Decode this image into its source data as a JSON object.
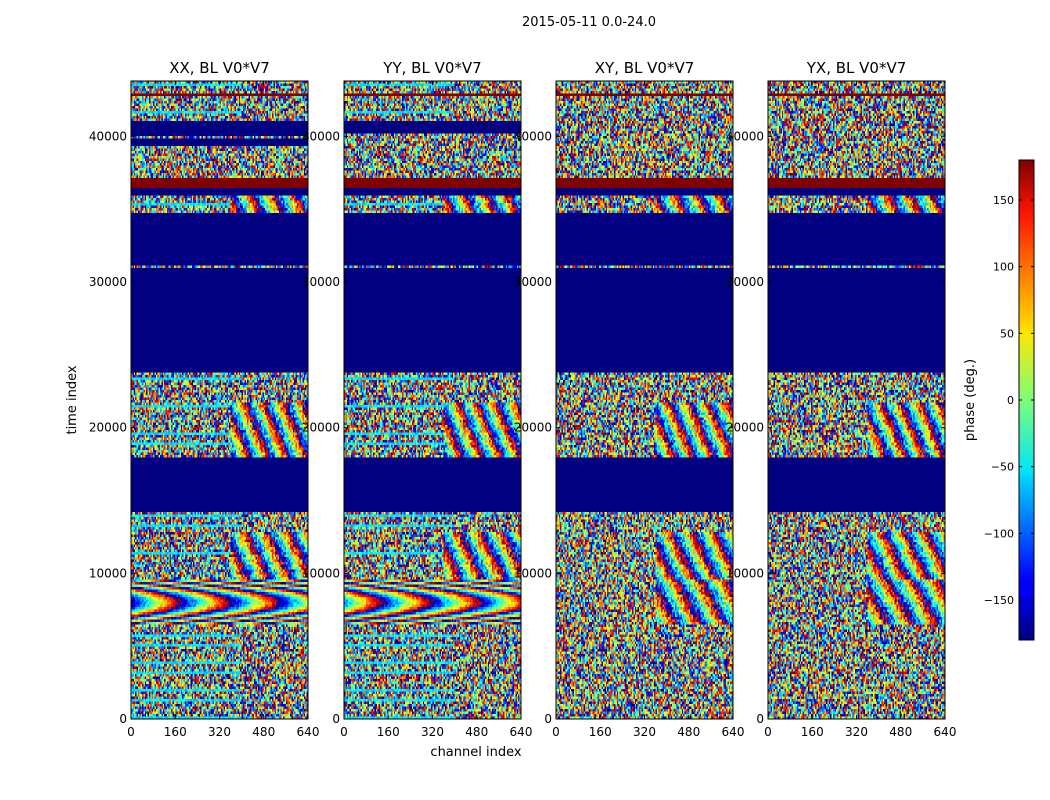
{
  "suptitle": "2015-05-11 0.0-24.0",
  "chart_data": {
    "type": "heatmap",
    "shared": {
      "xlabel": "channel index",
      "ylabel": "time index",
      "xlim": [
        0,
        640
      ],
      "ylim": [
        0,
        43800
      ],
      "xticks": [
        0,
        160,
        320,
        480,
        640
      ],
      "yticks": [
        0,
        10000,
        20000,
        30000,
        40000
      ],
      "colormap": "jet",
      "value_range": [
        -180,
        180
      ]
    },
    "panels": [
      {
        "title": "XX, BL V0*V7",
        "polarization": "XX"
      },
      {
        "title": "YY, BL V0*V7",
        "polarization": "YY"
      },
      {
        "title": "XY, BL V0*V7",
        "polarization": "XY"
      },
      {
        "title": "YX, BL V0*V7",
        "polarization": "YX"
      }
    ],
    "colorbar": {
      "label": "phase (deg.)",
      "range": [
        -180,
        180
      ],
      "ticks": [
        -150,
        -100,
        -50,
        0,
        50,
        100,
        150
      ],
      "tick_labels": [
        "−150",
        "−100",
        "−50",
        "0",
        "50",
        "100",
        "150"
      ]
    },
    "flagged_value": -180,
    "saturated_value": 180,
    "bands": [
      {
        "from": 0,
        "to": 1700,
        "kind": "noise",
        "fringe": 0
      },
      {
        "from": 1700,
        "to": 4600,
        "kind": "noise",
        "fringe": 0
      },
      {
        "from": 4600,
        "to": 6500,
        "kind": "noise",
        "fringe": 0
      },
      {
        "from": 6500,
        "to": 9500,
        "kind": "fringe",
        "fringe": 1
      },
      {
        "from": 9500,
        "to": 12800,
        "kind": "noise",
        "fringe": 2
      },
      {
        "from": 12800,
        "to": 14200,
        "kind": "noise",
        "fringe": 0
      },
      {
        "from": 14200,
        "to": 15300,
        "kind": "flagged"
      },
      {
        "from": 15300,
        "to": 17900,
        "kind": "mixed"
      },
      {
        "from": 17900,
        "to": 21800,
        "kind": "noise",
        "fringe": 3
      },
      {
        "from": 21800,
        "to": 23800,
        "kind": "noise",
        "fringe": 0
      },
      {
        "from": 23800,
        "to": 34800,
        "kind": "flagged"
      },
      {
        "from": 34800,
        "to": 35900,
        "kind": "noise",
        "fringe": 2
      },
      {
        "from": 35900,
        "to": 36400,
        "kind": "flagged"
      },
      {
        "from": 36400,
        "to": 37200,
        "kind": "saturated"
      },
      {
        "from": 37200,
        "to": 41000,
        "kind": "mixed"
      },
      {
        "from": 41000,
        "to": 43800,
        "kind": "noise",
        "fringe": 0
      }
    ],
    "thin_lines": [
      {
        "y": 31100,
        "kind": "noise"
      },
      {
        "y": 42900,
        "kind": "saturated"
      },
      {
        "y": 40000,
        "kind": "noise"
      }
    ]
  }
}
